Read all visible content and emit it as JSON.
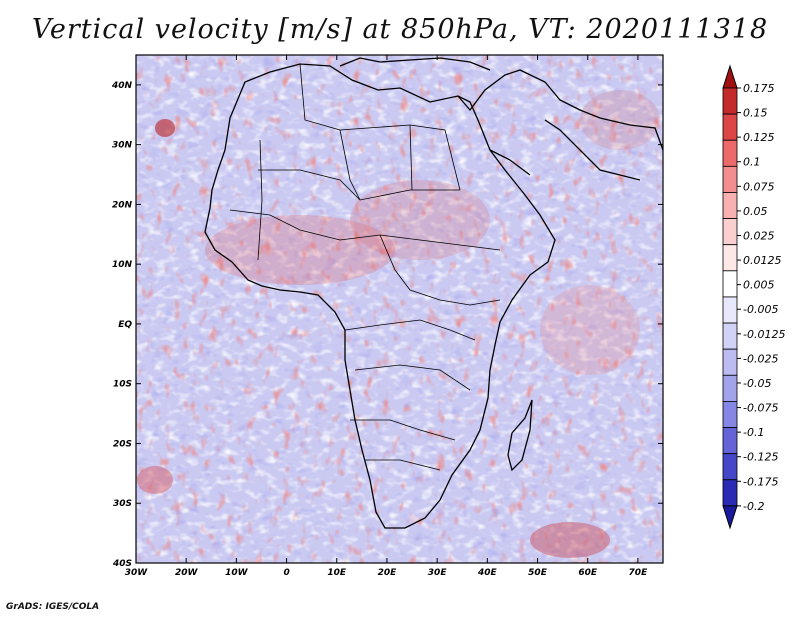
{
  "title": "Vertical velocity [m/s] at 850hPa, VT: 2020111318",
  "credit": "GrADS: IGES/COLA",
  "map": {
    "region": "Africa",
    "lat_labels": [
      "40N",
      "30N",
      "20N",
      "10N",
      "EQ",
      "10S",
      "20S",
      "30S",
      "40S"
    ],
    "lon_labels": [
      "30W",
      "20W",
      "10W",
      "0",
      "10E",
      "20E",
      "30E",
      "40E",
      "50E",
      "60E",
      "70E"
    ],
    "lon_range": [
      -30,
      75
    ],
    "lat_range": [
      -40,
      45
    ]
  },
  "colorbar": {
    "labels": [
      "0.175",
      "0.15",
      "0.125",
      "0.1",
      "0.075",
      "0.05",
      "0.025",
      "0.0125",
      "0.005",
      "-0.005",
      "-0.0125",
      "-0.025",
      "-0.05",
      "-0.075",
      "-0.1",
      "-0.125",
      "-0.175",
      "-0.2"
    ],
    "colors": [
      "#a01010",
      "#c42a2a",
      "#dc4646",
      "#ec6a6a",
      "#f48e8e",
      "#f8b0b0",
      "#fbcfcf",
      "#fde8e8",
      "#ffffff",
      "#e8e8fb",
      "#d2d2f7",
      "#bcbcf2",
      "#a3a3ec",
      "#8686e4",
      "#6464d8",
      "#4646c8",
      "#2a2ab4",
      "#1a1a9c"
    ]
  }
}
